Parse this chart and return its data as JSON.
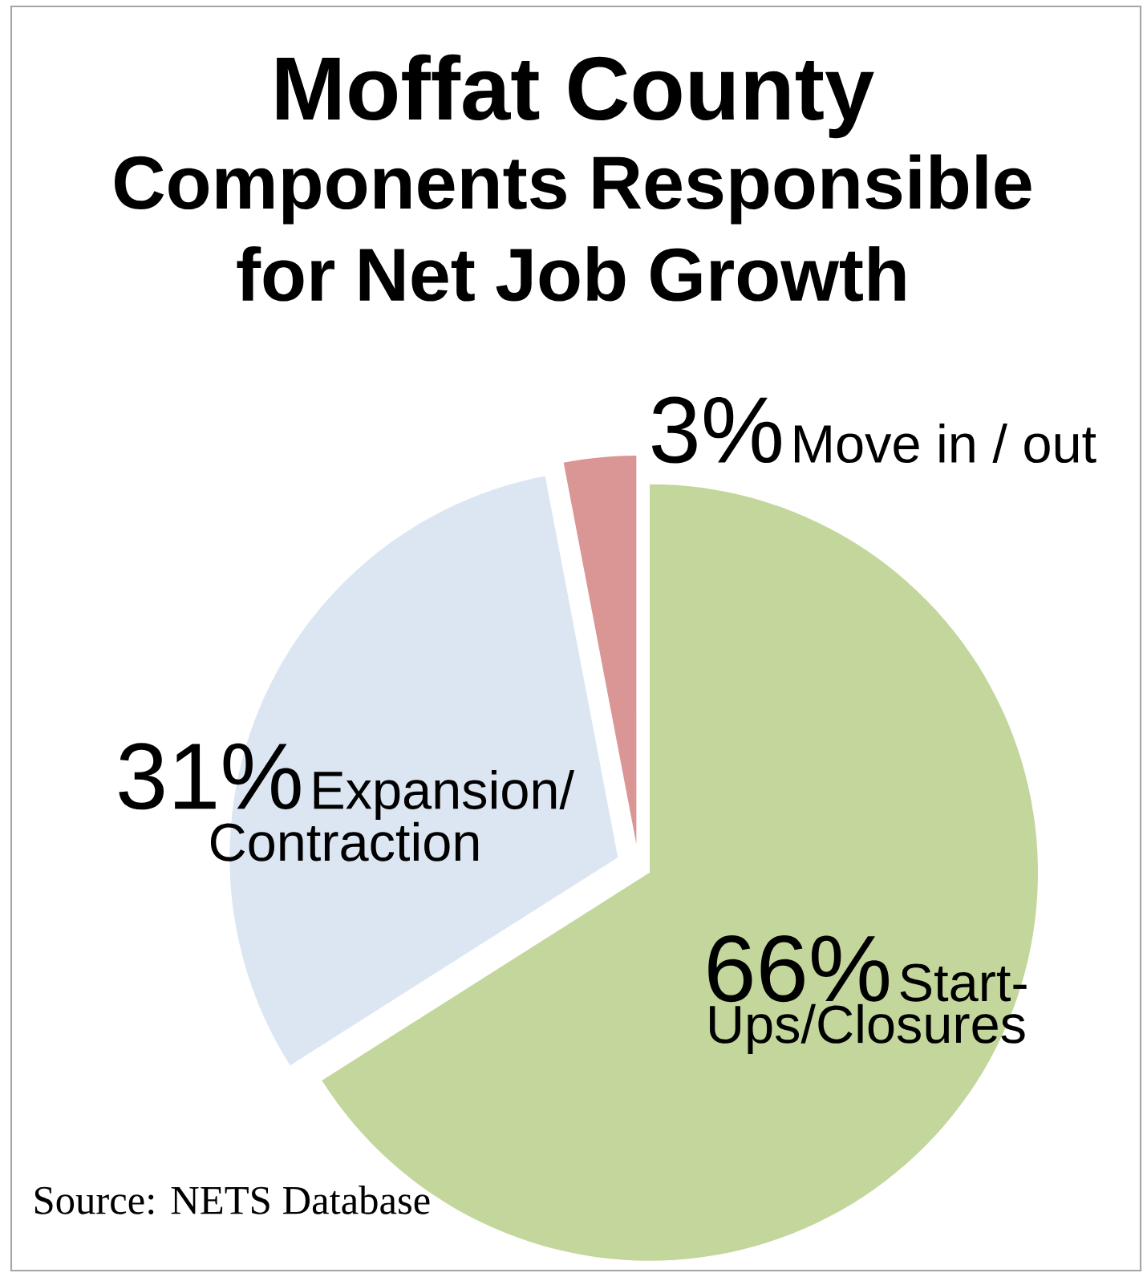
{
  "chart_data": {
    "type": "pie",
    "title": "Moffat County",
    "subtitle": "Components Responsible for Net Job Growth",
    "categories": [
      "Start-Ups/Closures",
      "Expansion/ Contraction",
      "Move in / out"
    ],
    "values": [
      66,
      31,
      3
    ],
    "value_labels": [
      "66%",
      "31%",
      "3%"
    ],
    "colors": [
      "#c3d69b",
      "#dce6f2",
      "#d99694"
    ],
    "annotations": [
      "Source: NETS Database"
    ]
  }
}
